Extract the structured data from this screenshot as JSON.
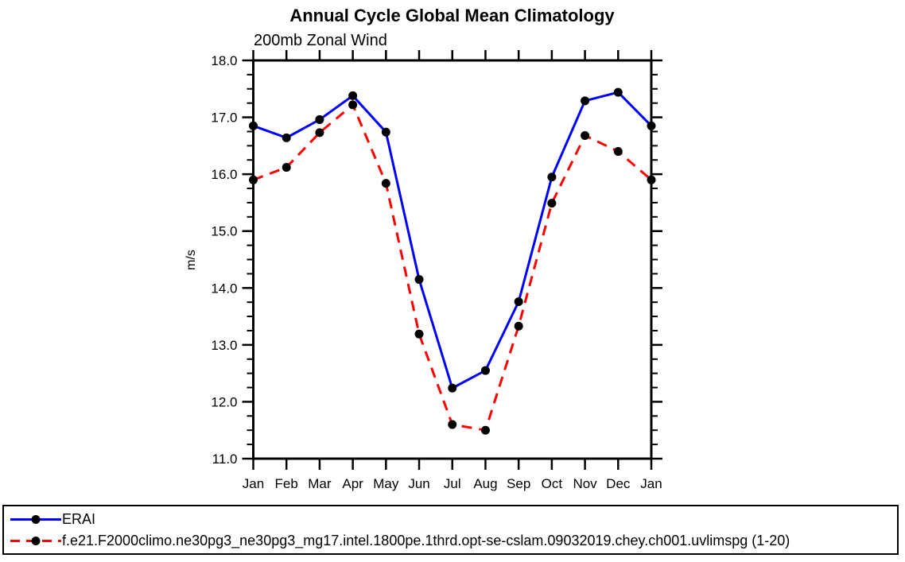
{
  "chart_data": {
    "type": "line",
    "title": "Annual Cycle Global Mean Climatology",
    "subtitle": "200mb Zonal Wind",
    "ylabel": "m/s",
    "x_categories": [
      "Jan",
      "Feb",
      "Mar",
      "Apr",
      "May",
      "Jun",
      "Jul",
      "Aug",
      "Sep",
      "Oct",
      "Nov",
      "Dec",
      "Jan"
    ],
    "ylim": [
      11.0,
      18.0
    ],
    "ytick_step": 1.0,
    "ytick_minor_step": 0.25,
    "ytick_labels": [
      "11.0",
      "12.0",
      "13.0",
      "14.0",
      "15.0",
      "16.0",
      "17.0",
      "18.0"
    ],
    "grid": false,
    "axis_color": "#000000",
    "legend_position": "framed box, bottom left, full width",
    "series": [
      {
        "name": "ERAI",
        "color": "#0000ff",
        "line_style": "solid",
        "marker": "filled-circle",
        "marker_color": "#000000",
        "values": [
          16.85,
          16.64,
          16.96,
          17.38,
          16.74,
          14.15,
          12.24,
          12.55,
          13.76,
          15.95,
          17.29,
          17.44,
          16.85
        ]
      },
      {
        "name": "f.e21.F2000climo.ne30pg3_ne30pg3_mg17.intel.1800pe.1thrd.opt-se-cslam.09032019.chey.ch001.uvlimspg (1-20)",
        "color": "#ff0000",
        "line_style": "dashed",
        "marker": "filled-circle",
        "marker_color": "#000000",
        "values": [
          15.9,
          16.12,
          16.73,
          17.22,
          15.84,
          13.19,
          11.6,
          11.5,
          13.33,
          15.49,
          16.68,
          16.4,
          15.9
        ]
      }
    ]
  }
}
